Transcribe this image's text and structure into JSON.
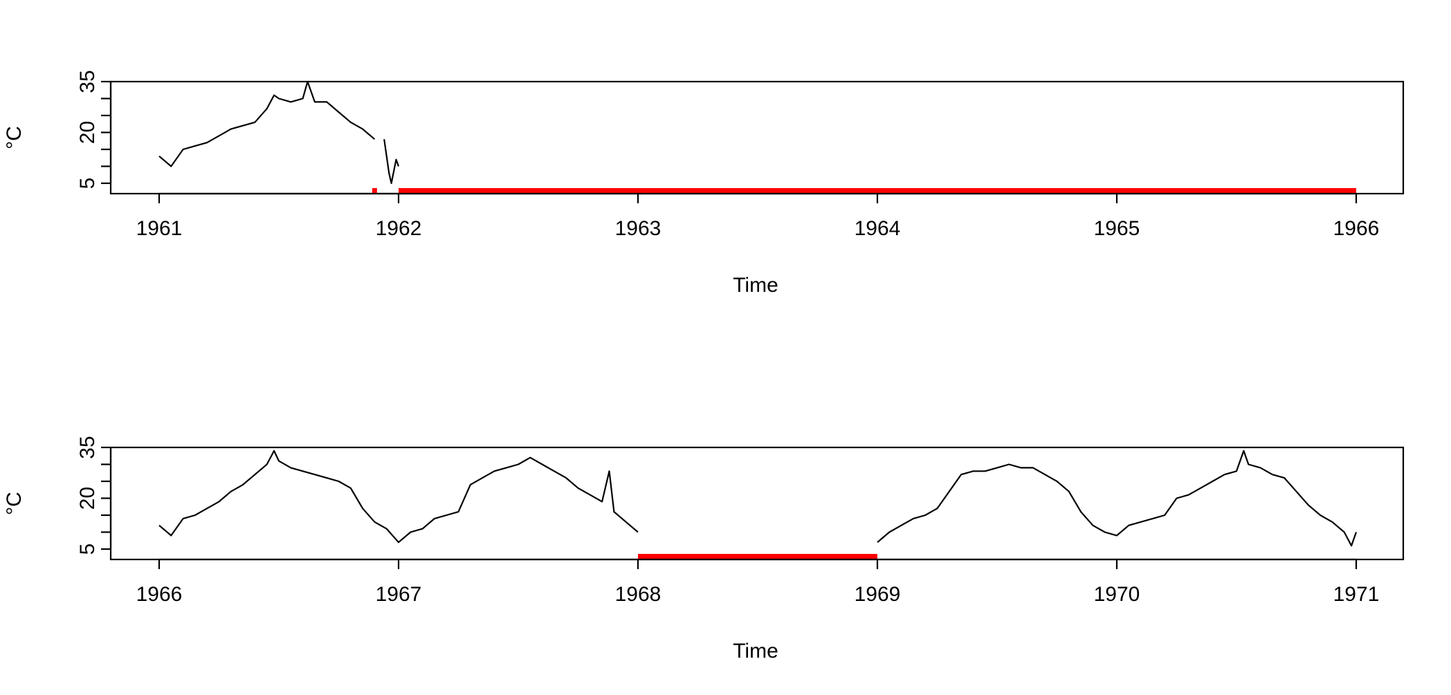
{
  "chart_data": [
    {
      "type": "line",
      "xlabel": "Time",
      "ylabel": "°C",
      "xlim": [
        1961,
        1966
      ],
      "ylim": [
        5,
        35
      ],
      "x_ticks": [
        1961,
        1962,
        1963,
        1964,
        1965,
        1966
      ],
      "x_tick_labels": [
        "1961",
        "1962",
        "1963",
        "1964",
        "1965",
        "1966"
      ],
      "y_ticks": [
        5,
        10,
        15,
        20,
        25,
        30,
        35
      ],
      "y_tick_labels": [
        "5",
        "20",
        "35"
      ],
      "grid": false,
      "series": [
        {
          "color": "#000000",
          "x": [
            1961.0,
            1961.05,
            1961.1,
            1961.15,
            1961.2,
            1961.25,
            1961.3,
            1961.35,
            1961.4,
            1961.45,
            1961.48,
            1961.5,
            1961.55,
            1961.6,
            1961.62,
            1961.65,
            1961.7,
            1961.75,
            1961.8,
            1961.85,
            1961.9
          ],
          "y": [
            13,
            10,
            15,
            16,
            17,
            19,
            21,
            22,
            23,
            27,
            31,
            30,
            29,
            30,
            35,
            29,
            29,
            26,
            23,
            21,
            18
          ]
        },
        {
          "color": "#000000",
          "x": [
            1961.94,
            1961.96,
            1961.97,
            1961.99,
            1962.0
          ],
          "y": [
            18,
            8,
            5,
            12,
            10
          ]
        }
      ],
      "missing_periods": [
        {
          "color": "#ff0000",
          "start": 1961.89,
          "end": 1961.91
        },
        {
          "color": "#ff0000",
          "start": 1962.0,
          "end": 1966.0
        }
      ]
    },
    {
      "type": "line",
      "xlabel": "Time",
      "ylabel": "°C",
      "xlim": [
        1966,
        1971
      ],
      "ylim": [
        5,
        35
      ],
      "x_ticks": [
        1966,
        1967,
        1968,
        1969,
        1970,
        1971
      ],
      "x_tick_labels": [
        "1966",
        "1967",
        "1968",
        "1969",
        "1970",
        "1971"
      ],
      "y_ticks": [
        5,
        10,
        15,
        20,
        25,
        30,
        35
      ],
      "y_tick_labels": [
        "5",
        "20",
        "35"
      ],
      "grid": false,
      "series": [
        {
          "color": "#000000",
          "x": [
            1966.0,
            1966.05,
            1966.1,
            1966.15,
            1966.2,
            1966.25,
            1966.3,
            1966.35,
            1966.4,
            1966.45,
            1966.48,
            1966.5,
            1966.55,
            1966.6,
            1966.65,
            1966.7,
            1966.75,
            1966.8,
            1966.85,
            1966.9,
            1966.95,
            1967.0,
            1967.05,
            1967.1,
            1967.15,
            1967.2,
            1967.25,
            1967.3,
            1967.35,
            1967.4,
            1967.45,
            1967.5,
            1967.55,
            1967.6,
            1967.65,
            1967.7,
            1967.75,
            1967.8,
            1967.85,
            1967.88,
            1967.9,
            1967.95,
            1968.0
          ],
          "y": [
            12,
            9,
            14,
            15,
            17,
            19,
            22,
            24,
            27,
            30,
            34,
            31,
            29,
            28,
            27,
            26,
            25,
            23,
            17,
            13,
            11,
            7,
            10,
            11,
            14,
            15,
            16,
            24,
            26,
            28,
            29,
            30,
            32,
            30,
            28,
            26,
            23,
            21,
            19,
            28,
            16,
            13,
            10
          ]
        },
        {
          "color": "#000000",
          "x": [
            1969.0,
            1969.05,
            1969.1,
            1969.15,
            1969.2,
            1969.25,
            1969.3,
            1969.35,
            1969.4,
            1969.45,
            1969.5,
            1969.55,
            1969.6,
            1969.65,
            1969.7,
            1969.75,
            1969.8,
            1969.85,
            1969.9,
            1969.95,
            1970.0,
            1970.05,
            1970.1,
            1970.15,
            1970.2,
            1970.25,
            1970.3,
            1970.35,
            1970.4,
            1970.45,
            1970.5,
            1970.53,
            1970.55,
            1970.6,
            1970.65,
            1970.7,
            1970.75,
            1970.8,
            1970.85,
            1970.9,
            1970.95,
            1970.98,
            1971.0
          ],
          "y": [
            7,
            10,
            12,
            14,
            15,
            17,
            22,
            27,
            28,
            28,
            29,
            30,
            29,
            29,
            27,
            25,
            22,
            16,
            12,
            10,
            9,
            12,
            13,
            14,
            15,
            20,
            21,
            23,
            25,
            27,
            28,
            34,
            30,
            29,
            27,
            26,
            22,
            18,
            15,
            13,
            10,
            6,
            10
          ]
        }
      ],
      "missing_periods": [
        {
          "color": "#ff0000",
          "start": 1968.0,
          "end": 1969.0
        }
      ]
    }
  ]
}
